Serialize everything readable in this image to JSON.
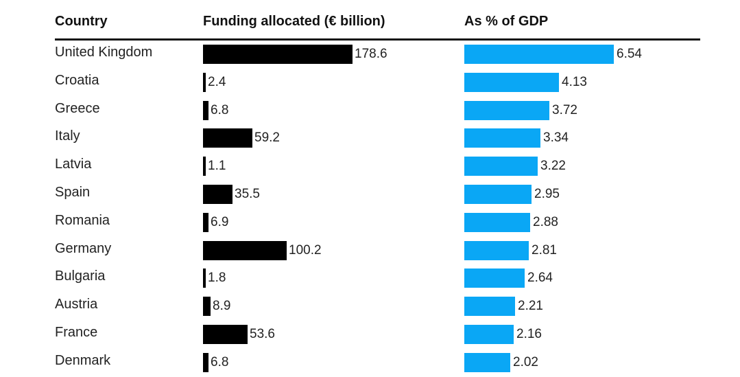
{
  "colors": {
    "funding_bar": "#000000",
    "gdp_bar": "#0aa7f5",
    "text": "#222222"
  },
  "chart_data": [
    {
      "type": "bar",
      "orientation": "horizontal",
      "title": "Funding allocated (€ billion)",
      "categories": [
        "United Kingdom",
        "Croatia",
        "Greece",
        "Italy",
        "Latvia",
        "Spain",
        "Romania",
        "Germany",
        "Bulgaria",
        "Austria",
        "France",
        "Denmark"
      ],
      "values": [
        178.6,
        2.4,
        6.8,
        59.2,
        1.1,
        35.5,
        6.9,
        100.2,
        1.8,
        8.9,
        53.6,
        6.8
      ],
      "value_labels": [
        "178.6",
        "2.4",
        "6.8",
        "59.2",
        "1.1",
        "35.5",
        "6.9",
        "100.2",
        "1.8",
        "8.9",
        "53.6",
        "6.8"
      ],
      "xlim": [
        0,
        178.6
      ],
      "grid": false,
      "color": "#000000"
    },
    {
      "type": "bar",
      "orientation": "horizontal",
      "title": "As % of GDP",
      "categories": [
        "United Kingdom",
        "Croatia",
        "Greece",
        "Italy",
        "Latvia",
        "Spain",
        "Romania",
        "Germany",
        "Bulgaria",
        "Austria",
        "France",
        "Denmark"
      ],
      "values": [
        6.54,
        4.13,
        3.72,
        3.34,
        3.22,
        2.95,
        2.88,
        2.81,
        2.64,
        2.21,
        2.16,
        2.02
      ],
      "value_labels": [
        "6.54",
        "4.13",
        "3.72",
        "3.34",
        "3.22",
        "2.95",
        "2.88",
        "2.81",
        "2.64",
        "2.21",
        "2.16",
        "2.02"
      ],
      "xlim": [
        0,
        6.54
      ],
      "grid": false,
      "color": "#0aa7f5"
    }
  ],
  "table": {
    "country_header": "Country"
  }
}
